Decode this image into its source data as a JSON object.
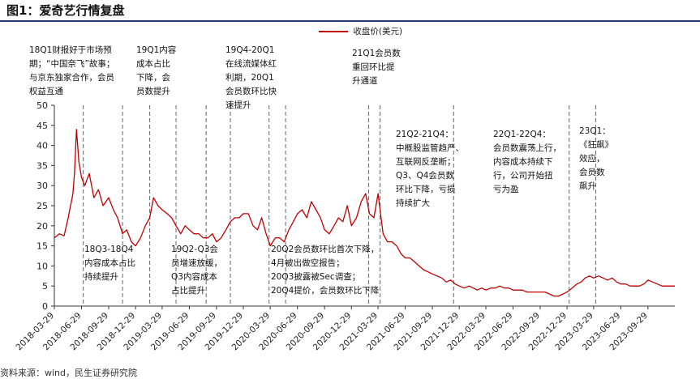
{
  "figure_title": "图1：爱奇艺行情复盘",
  "source": "资料来源：wind，民生证券研究院",
  "legend_label": "收盘价(美元)",
  "colors": {
    "line": "#c00000",
    "title_rule": "#1e3b72",
    "divider": "#666666"
  },
  "annotations": [
    {
      "lines": [
        "18Q1财报好于市场预",
        "期；“中国奈飞”故事；",
        "与京东独家合作，会员",
        "权益互通"
      ]
    },
    {
      "lines": [
        "19Q1内容",
        "成本占比",
        "下降，会",
        "员数提升"
      ]
    },
    {
      "lines": [
        "19Q4-20Q1",
        "在线流媒体红",
        "利期，20Q1",
        "会员数环比快",
        "速提升"
      ]
    },
    {
      "lines": [
        "21Q1会员数",
        "重回环比提",
        "升通道"
      ]
    },
    {
      "lines": [
        "21Q2-21Q4：",
        "中概股监管趋严、",
        "互联网反垄断；",
        "Q3、Q4会员数",
        "环比下降，亏损",
        "持续扩大"
      ]
    },
    {
      "lines": [
        "22Q1-22Q4：",
        "会员数震荡上行，",
        "内容成本持续下",
        "行，公司开始扭",
        "亏为盈"
      ]
    },
    {
      "lines": [
        "23Q1：",
        "《狂飙》",
        "效应，",
        "会员数",
        "飙升"
      ]
    },
    {
      "lines": [
        "18Q3-18Q4",
        "内容成本占比",
        "持续提升"
      ]
    },
    {
      "lines": [
        "19Q2-Q3会",
        "员增速放缓，",
        "Q3内容成本",
        "占比提升"
      ]
    },
    {
      "lines": [
        "20Q2会员数环比首次下降，",
        "4月被出做空报告；",
        "20Q3披露被Sec调查；",
        "20Q4提价，会员数环比下降"
      ]
    }
  ],
  "chart_data": {
    "type": "line",
    "title": "",
    "xlabel": "",
    "ylabel": "",
    "ylim": [
      0,
      50
    ],
    "yticks": [
      0,
      5,
      10,
      15,
      20,
      25,
      30,
      35,
      40,
      45,
      50
    ],
    "xlim": [
      "2018-03-29",
      "2023-12-29"
    ],
    "xticks": [
      "2018-03-29",
      "2018-06-29",
      "2018-09-29",
      "2018-12-29",
      "2019-03-29",
      "2019-06-29",
      "2019-09-29",
      "2019-12-29",
      "2020-03-29",
      "2020-06-29",
      "2020-09-29",
      "2020-12-29",
      "2021-03-29",
      "2021-06-29",
      "2021-09-29",
      "2021-12-29",
      "2022-03-29",
      "2022-06-29",
      "2022-09-29",
      "2022-12-29",
      "2023-03-29",
      "2023-06-29",
      "2023-09-29"
    ],
    "divider_dates": [
      "2018-07-05",
      "2018-11-15",
      "2019-02-15",
      "2019-05-15",
      "2019-08-25",
      "2019-11-15",
      "2020-03-25",
      "2020-05-20",
      "2021-02-25",
      "2021-04-05",
      "2021-12-10",
      "2023-01-05",
      "2023-04-05"
    ],
    "grid": false,
    "legend_position": "top",
    "series": [
      {
        "name": "收盘价(美元)",
        "x": [
          "2018-03-29",
          "2018-04-15",
          "2018-05-01",
          "2018-05-15",
          "2018-05-31",
          "2018-06-05",
          "2018-06-12",
          "2018-06-20",
          "2018-06-29",
          "2018-07-10",
          "2018-07-25",
          "2018-08-10",
          "2018-08-25",
          "2018-09-10",
          "2018-09-29",
          "2018-10-15",
          "2018-10-29",
          "2018-11-15",
          "2018-11-29",
          "2018-12-15",
          "2018-12-29",
          "2019-01-15",
          "2019-01-31",
          "2019-02-15",
          "2019-02-28",
          "2019-03-15",
          "2019-03-29",
          "2019-04-15",
          "2019-04-30",
          "2019-05-15",
          "2019-05-31",
          "2019-06-15",
          "2019-06-29",
          "2019-07-15",
          "2019-07-31",
          "2019-08-15",
          "2019-08-31",
          "2019-09-15",
          "2019-09-29",
          "2019-10-15",
          "2019-10-31",
          "2019-11-15",
          "2019-11-30",
          "2019-12-15",
          "2019-12-29",
          "2020-01-15",
          "2020-01-31",
          "2020-02-15",
          "2020-02-29",
          "2020-03-15",
          "2020-03-29",
          "2020-04-15",
          "2020-04-30",
          "2020-05-15",
          "2020-05-31",
          "2020-06-15",
          "2020-06-29",
          "2020-07-15",
          "2020-07-31",
          "2020-08-15",
          "2020-08-31",
          "2020-09-15",
          "2020-09-29",
          "2020-10-15",
          "2020-10-31",
          "2020-11-15",
          "2020-11-30",
          "2020-12-15",
          "2020-12-29",
          "2021-01-15",
          "2021-01-31",
          "2021-02-15",
          "2021-02-28",
          "2021-03-15",
          "2021-03-29",
          "2021-04-15",
          "2021-04-30",
          "2021-05-15",
          "2021-05-31",
          "2021-06-15",
          "2021-06-29",
          "2021-07-15",
          "2021-07-31",
          "2021-08-15",
          "2021-08-31",
          "2021-09-15",
          "2021-09-29",
          "2021-10-15",
          "2021-10-31",
          "2021-11-15",
          "2021-11-30",
          "2021-12-15",
          "2021-12-29",
          "2022-01-15",
          "2022-01-31",
          "2022-02-15",
          "2022-02-28",
          "2022-03-15",
          "2022-03-29",
          "2022-04-15",
          "2022-04-30",
          "2022-05-15",
          "2022-05-31",
          "2022-06-15",
          "2022-06-29",
          "2022-07-15",
          "2022-07-31",
          "2022-08-15",
          "2022-08-31",
          "2022-09-15",
          "2022-09-29",
          "2022-10-15",
          "2022-10-31",
          "2022-11-15",
          "2022-11-30",
          "2022-12-15",
          "2022-12-29",
          "2023-01-15",
          "2023-01-31",
          "2023-02-15",
          "2023-02-28",
          "2023-03-15",
          "2023-03-29",
          "2023-04-15",
          "2023-04-30",
          "2023-05-15",
          "2023-05-31",
          "2023-06-15",
          "2023-06-29",
          "2023-07-15",
          "2023-07-31",
          "2023-08-15",
          "2023-08-31",
          "2023-09-15",
          "2023-09-29",
          "2023-10-15",
          "2023-10-31",
          "2023-11-15",
          "2023-11-30",
          "2023-12-15",
          "2023-12-29"
        ],
        "values": [
          17,
          18,
          17.5,
          22,
          28,
          33,
          44,
          36,
          32,
          30,
          33,
          27,
          29,
          25,
          27,
          24,
          22,
          18,
          19,
          16,
          15,
          17,
          20,
          22,
          27,
          25,
          24,
          23,
          22,
          20,
          18,
          20,
          19,
          18,
          18,
          17,
          17,
          18,
          16,
          17,
          19,
          21,
          22,
          22,
          23,
          23,
          20,
          19,
          22,
          18,
          15,
          17,
          17,
          16,
          19,
          21,
          23,
          24,
          22,
          26,
          24,
          22,
          19,
          18,
          20,
          22,
          21,
          25,
          20,
          22,
          26,
          28,
          23,
          22,
          28,
          18,
          16,
          16,
          15,
          13,
          12,
          12,
          11,
          10,
          9,
          8.5,
          8,
          7.5,
          7,
          6,
          6.5,
          5.5,
          5,
          4.5,
          5,
          4.5,
          4,
          4.5,
          4,
          4.5,
          4.5,
          5,
          4.5,
          4.5,
          4,
          4,
          4,
          3.5,
          3.5,
          3.5,
          3.5,
          3.5,
          3,
          2.5,
          2.5,
          3,
          3.5,
          4.5,
          5.5,
          6,
          7,
          7.5,
          7,
          7.5,
          7,
          6.5,
          7,
          6,
          5.5,
          5.5,
          5,
          5,
          5,
          5.5,
          6.5,
          6,
          5.5,
          5,
          5,
          5,
          5
        ]
      }
    ]
  }
}
